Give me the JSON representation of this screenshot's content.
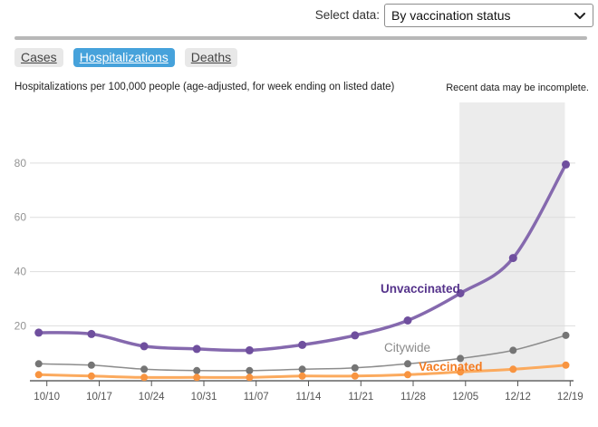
{
  "header": {
    "select_label": "Select data:",
    "select_value": "By vaccination status"
  },
  "tabs": [
    {
      "label": "Cases",
      "active": false
    },
    {
      "label": "Hospitalizations",
      "active": true
    },
    {
      "label": "Deaths",
      "active": false
    }
  ],
  "chart_data": {
    "type": "line",
    "title": "Hospitalizations per 100,000 people (age-adjusted, for week ending on listed date)",
    "categories": [
      "10/10",
      "10/17",
      "10/24",
      "10/31",
      "11/07",
      "11/14",
      "11/21",
      "11/28",
      "12/05",
      "12/12",
      "12/19"
    ],
    "series": [
      {
        "name": "Citywide",
        "values": [
          6,
          5.5,
          4,
          3.5,
          3.5,
          4,
          4.5,
          6,
          8,
          11,
          16.5
        ],
        "line_color": "#8c8c8c",
        "marker_color": "#757575",
        "label_color": "#8a8a8a",
        "line_width": 1.5,
        "marker_radius": 4,
        "bold_label": false
      },
      {
        "name": "Vaccinated",
        "values": [
          2,
          1.5,
          1,
          1,
          1,
          1.5,
          1.5,
          2,
          3,
          4,
          5.5
        ],
        "line_color": "#fbaa5e",
        "marker_color": "#f89440",
        "label_color": "#f47b20",
        "line_width": 3,
        "marker_radius": 4,
        "bold_label": true
      },
      {
        "name": "Unvaccinated",
        "values": [
          17.5,
          17,
          12.5,
          11.5,
          11,
          13,
          16.5,
          22,
          32,
          45,
          79.5
        ],
        "line_color": "#8569ae",
        "marker_color": "#6f4f9e",
        "label_color": "#55338b",
        "line_width": 3.5,
        "marker_radius": 4.5,
        "bold_label": true
      }
    ],
    "y_ticks": [
      20,
      40,
      60,
      80
    ],
    "ylim": [
      0,
      100
    ],
    "grid": true,
    "legend": "inline-labels",
    "incomplete_band": {
      "from": "12/05",
      "to": "12/19",
      "note": "Recent data may be incomplete."
    }
  }
}
